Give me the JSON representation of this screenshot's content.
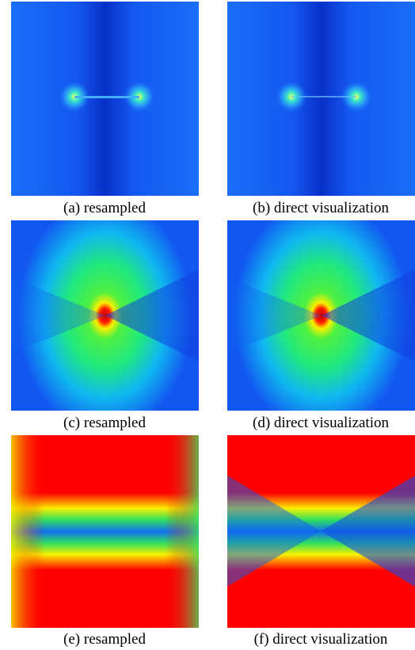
{
  "panels": [
    {
      "caption": "(a) resampled"
    },
    {
      "caption": "(b) direct visualization"
    },
    {
      "caption": "(c) resampled"
    },
    {
      "caption": "(d) direct visualization"
    },
    {
      "caption": "(e) resampled"
    },
    {
      "caption": "(f) direct visualization"
    }
  ]
}
